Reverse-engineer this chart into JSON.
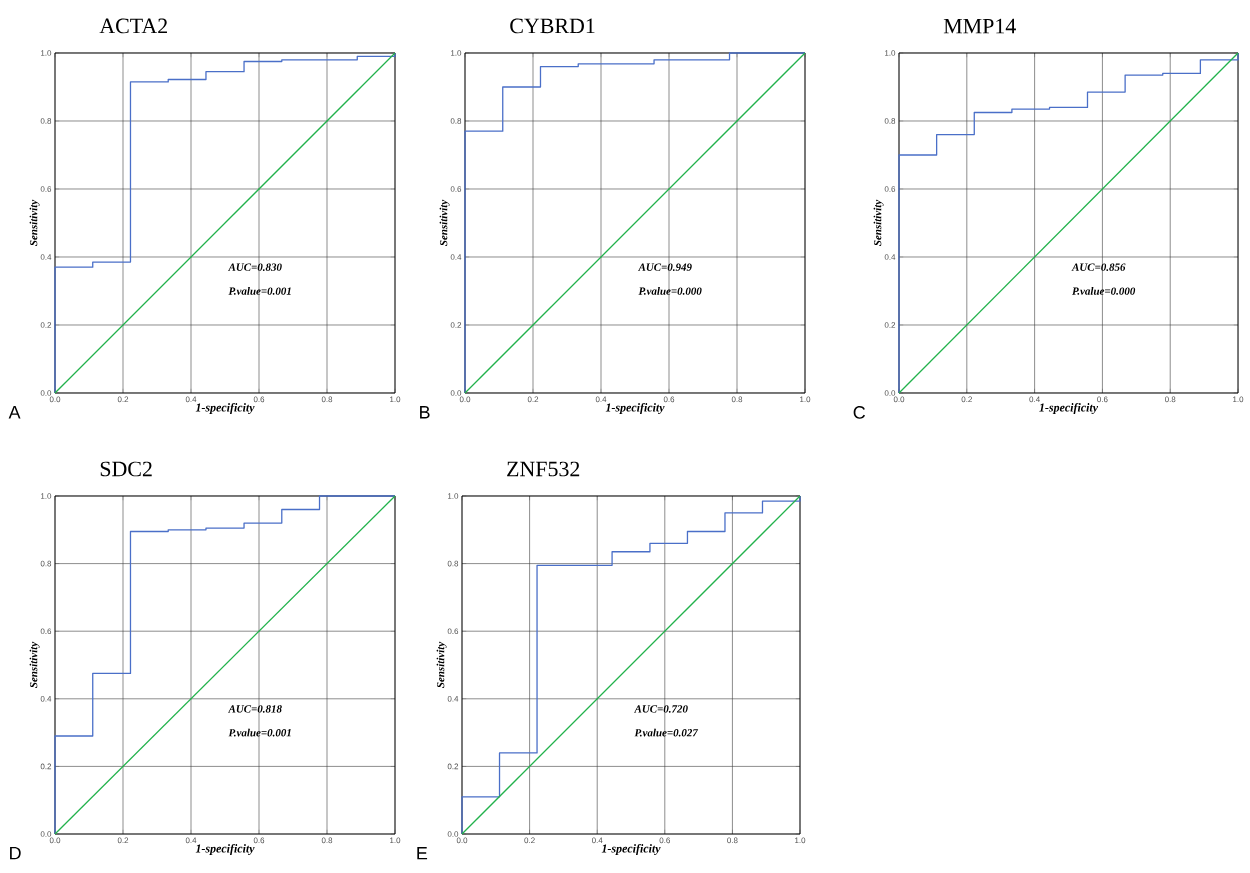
{
  "chart_data": [
    {
      "type": "step",
      "title": "ACTA2",
      "xlabel": "1-specificity",
      "ylabel": "Sensitivity",
      "grid": true,
      "xlim": [
        0,
        1
      ],
      "ylim": [
        0,
        1
      ],
      "xticks": [
        {
          "value": 0,
          "label": "0.0"
        },
        {
          "value": 0.2,
          "label": "0.2"
        },
        {
          "value": 0.4,
          "label": "0.4"
        },
        {
          "value": 0.6,
          "label": "0.6"
        },
        {
          "value": 0.8,
          "label": "0.8"
        },
        {
          "value": 1,
          "label": "1.0"
        }
      ],
      "yticks": [
        {
          "value": 0,
          "label": "0.0"
        },
        {
          "value": 0.2,
          "label": "0.2"
        },
        {
          "value": 0.4,
          "label": "0.4"
        },
        {
          "value": 0.6,
          "label": "0.6"
        },
        {
          "value": 0.8,
          "label": "0.8"
        },
        {
          "value": 1,
          "label": "1.0"
        }
      ],
      "series": [
        {
          "type": "step",
          "color": "#4a6fc8",
          "x": [
            0,
            0,
            0.111,
            0.222,
            0.333,
            0.444,
            0.556,
            0.667,
            0.889,
            1
          ],
          "values": [
            0,
            0.37,
            0.385,
            0.915,
            0.922,
            0.945,
            0.975,
            0.98,
            0.99,
            1
          ]
        },
        {
          "type": "line",
          "color": "#22b24c",
          "x": [
            0,
            1
          ],
          "values": [
            0,
            1
          ]
        }
      ],
      "annotations": [
        "AUC=0.830",
        "P.value=0.001",
        "A"
      ]
    },
    {
      "type": "step",
      "title": "CYBRD1",
      "xlabel": "1-specificity",
      "ylabel": "Sensitivity",
      "grid": true,
      "xlim": [
        0,
        1
      ],
      "ylim": [
        0,
        1
      ],
      "xticks": [
        {
          "value": 0,
          "label": "0.0"
        },
        {
          "value": 0.2,
          "label": "0.2"
        },
        {
          "value": 0.4,
          "label": "0.4"
        },
        {
          "value": 0.6,
          "label": "0.6"
        },
        {
          "value": 0.8,
          "label": "0.8"
        },
        {
          "value": 1,
          "label": "1.0"
        }
      ],
      "yticks": [
        {
          "value": 0,
          "label": "0.0"
        },
        {
          "value": 0.2,
          "label": "0.2"
        },
        {
          "value": 0.4,
          "label": "0.4"
        },
        {
          "value": 0.6,
          "label": "0.6"
        },
        {
          "value": 0.8,
          "label": "0.8"
        },
        {
          "value": 1,
          "label": "1.0"
        }
      ],
      "series": [
        {
          "type": "step",
          "color": "#4a6fc8",
          "x": [
            0,
            0,
            0.111,
            0.222,
            0.333,
            0.556,
            0.778,
            1
          ],
          "values": [
            0,
            0.77,
            0.9,
            0.96,
            0.968,
            0.98,
            1,
            1
          ]
        },
        {
          "type": "line",
          "color": "#22b24c",
          "x": [
            0,
            1
          ],
          "values": [
            0,
            1
          ]
        }
      ],
      "annotations": [
        "AUC=0.949",
        "P.value=0.000",
        "B"
      ]
    },
    {
      "type": "step",
      "title": "MMP14",
      "xlabel": "1-specificity",
      "ylabel": "Sensitivity",
      "grid": true,
      "xlim": [
        0,
        1
      ],
      "ylim": [
        0,
        1
      ],
      "xticks": [
        {
          "value": 0,
          "label": "0.0"
        },
        {
          "value": 0.2,
          "label": "0.2"
        },
        {
          "value": 0.4,
          "label": "0.4"
        },
        {
          "value": 0.6,
          "label": "0.6"
        },
        {
          "value": 0.8,
          "label": "0.8"
        },
        {
          "value": 1,
          "label": "1.0"
        }
      ],
      "yticks": [
        {
          "value": 0,
          "label": "0.0"
        },
        {
          "value": 0.2,
          "label": "0.2"
        },
        {
          "value": 0.4,
          "label": "0.4"
        },
        {
          "value": 0.6,
          "label": "0.6"
        },
        {
          "value": 0.8,
          "label": "0.8"
        },
        {
          "value": 1,
          "label": "1.0"
        }
      ],
      "series": [
        {
          "type": "step",
          "color": "#4a6fc8",
          "x": [
            0,
            0,
            0.111,
            0.222,
            0.333,
            0.444,
            0.556,
            0.667,
            0.778,
            0.889,
            1
          ],
          "values": [
            0,
            0.7,
            0.76,
            0.825,
            0.835,
            0.84,
            0.885,
            0.935,
            0.94,
            0.98,
            1
          ]
        },
        {
          "type": "line",
          "color": "#22b24c",
          "x": [
            0,
            1
          ],
          "values": [
            0,
            1
          ]
        }
      ],
      "annotations": [
        "AUC=0.856",
        "P.value=0.000",
        "C"
      ]
    },
    {
      "type": "step",
      "title": "SDC2",
      "xlabel": "1-specificity",
      "ylabel": "Sensitivity",
      "grid": true,
      "xlim": [
        0,
        1
      ],
      "ylim": [
        0,
        1
      ],
      "xticks": [
        {
          "value": 0,
          "label": "0.0"
        },
        {
          "value": 0.2,
          "label": "0.2"
        },
        {
          "value": 0.4,
          "label": "0.4"
        },
        {
          "value": 0.6,
          "label": "0.6"
        },
        {
          "value": 0.8,
          "label": "0.8"
        },
        {
          "value": 1,
          "label": "1.0"
        }
      ],
      "yticks": [
        {
          "value": 0,
          "label": "0.0"
        },
        {
          "value": 0.2,
          "label": "0.2"
        },
        {
          "value": 0.4,
          "label": "0.4"
        },
        {
          "value": 0.6,
          "label": "0.6"
        },
        {
          "value": 0.8,
          "label": "0.8"
        },
        {
          "value": 1,
          "label": "1.0"
        }
      ],
      "series": [
        {
          "type": "step",
          "color": "#4a6fc8",
          "x": [
            0,
            0,
            0.111,
            0.222,
            0.333,
            0.444,
            0.556,
            0.667,
            0.778,
            1
          ],
          "values": [
            0,
            0.29,
            0.475,
            0.895,
            0.9,
            0.905,
            0.92,
            0.96,
            1,
            1
          ]
        },
        {
          "type": "line",
          "color": "#22b24c",
          "x": [
            0,
            1
          ],
          "values": [
            0,
            1
          ]
        }
      ],
      "annotations": [
        "AUC=0.818",
        "P.value=0.001",
        "D"
      ]
    },
    {
      "type": "step",
      "title": "ZNF532",
      "xlabel": "1-specificity",
      "ylabel": "Sensitivity",
      "grid": true,
      "xlim": [
        0,
        1
      ],
      "ylim": [
        0,
        1
      ],
      "xticks": [
        {
          "value": 0,
          "label": "0.0"
        },
        {
          "value": 0.2,
          "label": "0.2"
        },
        {
          "value": 0.4,
          "label": "0.4"
        },
        {
          "value": 0.6,
          "label": "0.6"
        },
        {
          "value": 0.8,
          "label": "0.8"
        },
        {
          "value": 1,
          "label": "1.0"
        }
      ],
      "yticks": [
        {
          "value": 0,
          "label": "0.0"
        },
        {
          "value": 0.2,
          "label": "0.2"
        },
        {
          "value": 0.4,
          "label": "0.4"
        },
        {
          "value": 0.6,
          "label": "0.6"
        },
        {
          "value": 0.8,
          "label": "0.8"
        },
        {
          "value": 1,
          "label": "1.0"
        }
      ],
      "series": [
        {
          "type": "step",
          "color": "#4a6fc8",
          "x": [
            0,
            0,
            0.111,
            0.222,
            0.444,
            0.556,
            0.667,
            0.778,
            0.889,
            1
          ],
          "values": [
            0,
            0.11,
            0.24,
            0.795,
            0.835,
            0.86,
            0.895,
            0.95,
            0.985,
            1
          ]
        },
        {
          "type": "line",
          "color": "#22b24c",
          "x": [
            0,
            1
          ],
          "values": [
            0,
            1
          ]
        }
      ],
      "annotations": [
        "AUC=0.720",
        "P.value=0.027",
        "E"
      ]
    }
  ]
}
